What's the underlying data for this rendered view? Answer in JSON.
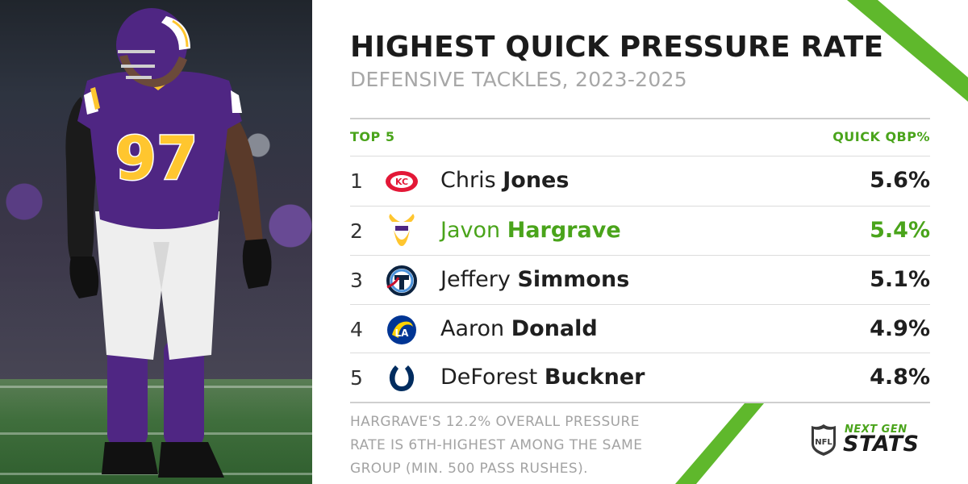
{
  "graphic": {
    "title": "HIGHEST QUICK PRESSURE RATE",
    "subtitle": "DEFENSIVE TACKLES, 2023-2025",
    "col_left": "TOP 5",
    "col_right": "QUICK QBP%",
    "accent_color": "#4aa41b",
    "rows": [
      {
        "rank": "1",
        "first": "Chris",
        "last": "Jones",
        "value": "5.6%",
        "team_icon": "chiefs-logo-icon",
        "highlight": false
      },
      {
        "rank": "2",
        "first": "Javon",
        "last": "Hargrave",
        "value": "5.4%",
        "team_icon": "vikings-logo-icon",
        "highlight": true
      },
      {
        "rank": "3",
        "first": "Jeffery",
        "last": "Simmons",
        "value": "5.1%",
        "team_icon": "titans-logo-icon",
        "highlight": false
      },
      {
        "rank": "4",
        "first": "Aaron",
        "last": "Donald",
        "value": "4.9%",
        "team_icon": "rams-logo-icon",
        "highlight": false
      },
      {
        "rank": "5",
        "first": "DeForest",
        "last": "Buckner",
        "value": "4.8%",
        "team_icon": "colts-logo-icon",
        "highlight": false
      }
    ],
    "footnote": "HARGRAVE'S 12.2% OVERALL PRESSURE RATE IS 6TH-HIGHEST AMONG THE SAME GROUP (MIN. 500 PASS RUSHES)."
  },
  "photo": {
    "jersey_number": "97",
    "jersey_color": "#4f2683",
    "jersey_trim": "#ffc62f"
  },
  "branding": {
    "next_label": "NEXT GEN",
    "stats_label": "STATS",
    "nfl_label": "NFL"
  }
}
